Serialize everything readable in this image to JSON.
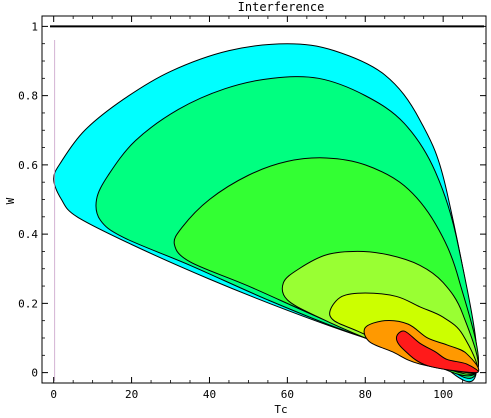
{
  "chart_data": {
    "type": "contour",
    "title": "Interference",
    "xlabel": "Tc",
    "ylabel": "W",
    "xlim": [
      -3,
      111
    ],
    "ylim": [
      -0.03,
      1.03
    ],
    "x_ticks": [
      0,
      20,
      40,
      60,
      80,
      100
    ],
    "y_ticks": [
      0,
      0.2,
      0.4,
      0.6,
      0.8,
      1
    ],
    "x_tick_labels": [
      "0",
      "20",
      "40",
      "60",
      "80",
      "100"
    ],
    "y_tick_labels": [
      "0",
      "0.2",
      "0.4",
      "0.6",
      "0.8",
      "1"
    ],
    "hline_y": 1,
    "grid": false,
    "convergence_point": [
      108.5,
      0.0
    ],
    "contours": [
      {
        "level": 1,
        "color": "#00ffff",
        "points": [
          [
            108.5,
            0.0
          ],
          [
            101,
            0.52
          ],
          [
            94,
            0.73
          ],
          [
            85,
            0.86
          ],
          [
            72,
            0.93
          ],
          [
            60,
            0.95
          ],
          [
            45,
            0.93
          ],
          [
            30,
            0.87
          ],
          [
            18,
            0.79
          ],
          [
            8,
            0.7
          ],
          [
            2,
            0.61
          ],
          [
            0,
            0.56
          ],
          [
            2,
            0.5
          ],
          [
            6,
            0.45
          ],
          [
            20,
            0.37
          ],
          [
            40,
            0.27
          ],
          [
            60,
            0.18
          ],
          [
            80,
            0.1
          ],
          [
            95,
            0.055
          ]
        ]
      },
      {
        "level": 2,
        "color": "#00ff80",
        "points": [
          [
            108.5,
            0.0
          ],
          [
            104,
            0.36
          ],
          [
            98,
            0.58
          ],
          [
            90,
            0.72
          ],
          [
            80,
            0.8
          ],
          [
            68,
            0.85
          ],
          [
            56,
            0.85
          ],
          [
            44,
            0.82
          ],
          [
            32,
            0.76
          ],
          [
            21,
            0.67
          ],
          [
            14,
            0.57
          ],
          [
            11,
            0.5
          ],
          [
            12,
            0.44
          ],
          [
            18,
            0.39
          ],
          [
            35,
            0.31
          ],
          [
            55,
            0.21
          ],
          [
            75,
            0.12
          ],
          [
            95,
            0.05
          ]
        ]
      },
      {
        "level": 3,
        "color": "#33ff33",
        "points": [
          [
            108.5,
            0.0
          ],
          [
            104,
            0.27
          ],
          [
            98,
            0.43
          ],
          [
            90,
            0.54
          ],
          [
            80,
            0.6
          ],
          [
            70,
            0.62
          ],
          [
            60,
            0.61
          ],
          [
            50,
            0.57
          ],
          [
            40,
            0.5
          ],
          [
            33,
            0.42
          ],
          [
            31,
            0.37
          ],
          [
            35,
            0.32
          ],
          [
            50,
            0.25
          ],
          [
            70,
            0.15
          ],
          [
            90,
            0.06
          ]
        ]
      },
      {
        "level": 4,
        "color": "#99ff33",
        "points": [
          [
            108.5,
            0.0
          ],
          [
            105,
            0.17
          ],
          [
            100,
            0.26
          ],
          [
            94,
            0.31
          ],
          [
            86,
            0.34
          ],
          [
            78,
            0.35
          ],
          [
            70,
            0.34
          ],
          [
            63,
            0.3
          ],
          [
            59,
            0.26
          ],
          [
            60,
            0.21
          ],
          [
            68,
            0.16
          ],
          [
            80,
            0.1
          ],
          [
            93,
            0.045
          ]
        ]
      },
      {
        "level": 5,
        "color": "#ccff00",
        "points": [
          [
            108.5,
            0.0
          ],
          [
            105,
            0.11
          ],
          [
            100,
            0.16
          ],
          [
            94,
            0.19
          ],
          [
            88,
            0.22
          ],
          [
            80,
            0.23
          ],
          [
            74,
            0.22
          ],
          [
            71,
            0.18
          ],
          [
            72,
            0.15
          ],
          [
            78,
            0.12
          ],
          [
            88,
            0.07
          ],
          [
            96,
            0.04
          ]
        ]
      },
      {
        "level": 6,
        "color": "#ff9900",
        "points": [
          [
            108.5,
            0.0
          ],
          [
            106,
            0.055
          ],
          [
            101,
            0.08
          ],
          [
            96,
            0.1
          ],
          [
            91,
            0.14
          ],
          [
            85,
            0.15
          ],
          [
            80,
            0.13
          ],
          [
            81,
            0.09
          ],
          [
            87,
            0.06
          ],
          [
            94,
            0.025
          ]
        ]
      },
      {
        "level": 7,
        "color": "#ff1a1a",
        "points": [
          [
            108.5,
            0.0
          ],
          [
            106,
            0.025
          ],
          [
            101,
            0.038
          ],
          [
            98,
            0.06
          ],
          [
            94,
            0.085
          ],
          [
            90,
            0.12
          ],
          [
            88,
            0.1
          ],
          [
            90,
            0.065
          ],
          [
            96,
            0.02
          ]
        ]
      }
    ]
  }
}
